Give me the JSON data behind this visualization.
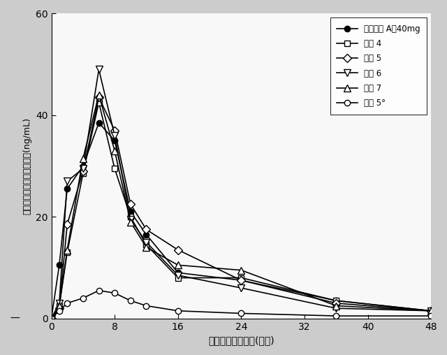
{
  "xlabel": "投与後の公称時間(時間)",
  "ylabel": "平均血漿オキシコドン濃度(ng/mL)",
  "xlim": [
    0,
    48
  ],
  "ylim": [
    0,
    60
  ],
  "xticks": [
    0,
    8,
    16,
    24,
    32,
    40,
    48
  ],
  "yticks": [
    0,
    20,
    40,
    60
  ],
  "series": [
    {
      "label": "参照製剤 A，40mg",
      "x": [
        0,
        1,
        2,
        4,
        6,
        8,
        10,
        12,
        16,
        24,
        36,
        48
      ],
      "y": [
        0,
        10.5,
        25.5,
        30.0,
        38.5,
        35.0,
        21.0,
        16.5,
        9.0,
        7.5,
        3.5,
        1.5
      ],
      "marker": "o",
      "markerfacecolor": "black",
      "markeredgecolor": "black",
      "color": "black",
      "markersize": 6
    },
    {
      "label": "製剤 4",
      "x": [
        0,
        1,
        2,
        4,
        6,
        8,
        10,
        12,
        16,
        24,
        36,
        48
      ],
      "y": [
        0,
        2.5,
        13.0,
        28.5,
        42.5,
        29.5,
        20.0,
        14.5,
        8.0,
        8.0,
        3.5,
        1.5
      ],
      "marker": "s",
      "markerfacecolor": "white",
      "markeredgecolor": "black",
      "color": "black",
      "markersize": 6
    },
    {
      "label": "製剤 5",
      "x": [
        0,
        1,
        2,
        4,
        6,
        8,
        10,
        12,
        16,
        24,
        36,
        48
      ],
      "y": [
        0,
        2.0,
        18.5,
        29.0,
        43.5,
        37.0,
        22.5,
        17.5,
        13.5,
        7.5,
        3.0,
        1.5
      ],
      "marker": "D",
      "markerfacecolor": "white",
      "markeredgecolor": "black",
      "color": "black",
      "markersize": 6
    },
    {
      "label": "製剤 6",
      "x": [
        0,
        1,
        2,
        4,
        6,
        8,
        10,
        12,
        16,
        24,
        36,
        48
      ],
      "y": [
        0,
        3.0,
        27.0,
        29.5,
        49.0,
        36.0,
        19.5,
        15.0,
        8.5,
        6.0,
        2.0,
        1.5
      ],
      "marker": "v",
      "markerfacecolor": "white",
      "markeredgecolor": "black",
      "color": "black",
      "markersize": 7
    },
    {
      "label": "製剤 7",
      "x": [
        0,
        1,
        2,
        4,
        6,
        8,
        10,
        12,
        16,
        24,
        36,
        48
      ],
      "y": [
        0,
        2.5,
        13.5,
        31.5,
        44.0,
        33.0,
        19.0,
        14.0,
        10.5,
        9.5,
        2.5,
        1.5
      ],
      "marker": "^",
      "markerfacecolor": "white",
      "markeredgecolor": "black",
      "color": "black",
      "markersize": 7
    },
    {
      "label": "製剤 5°",
      "x": [
        0,
        1,
        2,
        4,
        6,
        8,
        10,
        12,
        16,
        24,
        36,
        48
      ],
      "y": [
        0,
        1.5,
        3.0,
        4.0,
        5.5,
        5.0,
        3.5,
        2.5,
        1.5,
        1.0,
        0.5,
        0.5
      ],
      "marker": "o",
      "markerfacecolor": "white",
      "markeredgecolor": "black",
      "color": "black",
      "markersize": 6
    }
  ],
  "fig_facecolor": "#cccccc",
  "ax_facecolor": "#f8f8f8"
}
